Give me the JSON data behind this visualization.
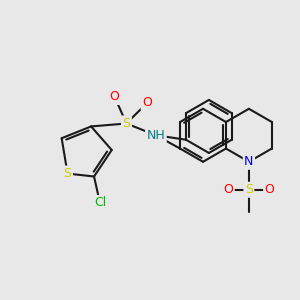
{
  "bg_color": "#e8e8e8",
  "bond_color": "#1a1a1a",
  "bond_width": 1.5,
  "atom_colors": {
    "S": "#cccc00",
    "O": "#ff0000",
    "NH": "#008080",
    "N": "#0000ee",
    "Cl": "#00bb00"
  },
  "figsize": [
    3.0,
    3.0
  ],
  "dpi": 100
}
